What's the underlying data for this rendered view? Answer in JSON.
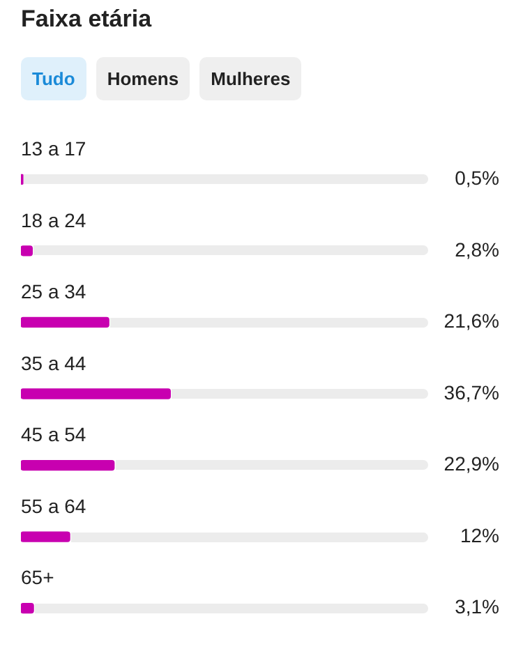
{
  "chart_data": {
    "type": "bar",
    "orientation": "horizontal",
    "title": "Faixa etária",
    "annotations": [
      "Tudo",
      "Homens",
      "Mulheres"
    ],
    "categories": [
      "13 a 17",
      "18 a 24",
      "25 a 34",
      "35 a 44",
      "45 a 54",
      "55 a 64",
      "65+"
    ],
    "values": [
      0.5,
      2.8,
      21.6,
      36.7,
      22.9,
      12,
      3.1
    ],
    "value_labels": [
      "0,5%",
      "2,8%",
      "21,6%",
      "36,7%",
      "22,9%",
      "12%",
      "3,1%"
    ],
    "color": "#c800b0",
    "xlim": [
      0,
      100
    ],
    "tick_labels": false,
    "legend": false
  }
}
